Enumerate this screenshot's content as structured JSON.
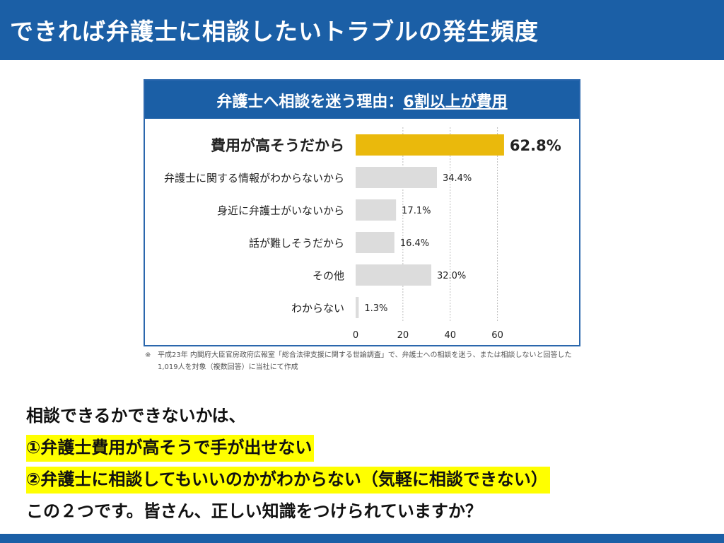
{
  "header": {
    "title": "できれば弁護士に相談したいトラブルの発生頻度"
  },
  "chart_data": {
    "type": "bar",
    "orientation": "horizontal",
    "title": "弁護士へ相談を迷う理由：",
    "title_highlight": "6割以上が費用",
    "categories": [
      "費用が高そうだから",
      "弁護士に関する情報がわからないから",
      "身近に弁護士がいないから",
      "話が難しそうだから",
      "その他",
      "わからない"
    ],
    "values": [
      62.8,
      34.4,
      17.1,
      16.4,
      32.0,
      1.3
    ],
    "value_labels": [
      "62.8%",
      "34.4%",
      "17.1%",
      "16.4%",
      "32.0%",
      "1.3%"
    ],
    "highlight_index": 0,
    "xlim": [
      0,
      70
    ],
    "x_ticks": [
      0,
      20,
      40,
      60
    ],
    "grid": "vertical-dashed",
    "colors": {
      "highlight": "#eab90c",
      "bar": "#dcdcdc",
      "header": "#1b5fa6"
    }
  },
  "footnote": {
    "mark": "※",
    "line1": "平成23年 内閣府大臣官房政府広報室「総合法律支援に関する世論調査」で、弁護士への相談を迷う、または相談しないと回答した",
    "line2": "1,019人を対象（複数回答）に当社にて作成"
  },
  "summary": {
    "line1": "相談できるかできないかは、",
    "line2": "①弁護士費用が高そうで手が出せない",
    "line3": "②弁護士に相談してもいいのかがわからない（気軽に相談できない）",
    "line4": "この２つです。皆さん、正しい知識をつけられていますか？"
  },
  "colors": {
    "accent": "#1b5fa6",
    "highlight": "#ffff00"
  }
}
